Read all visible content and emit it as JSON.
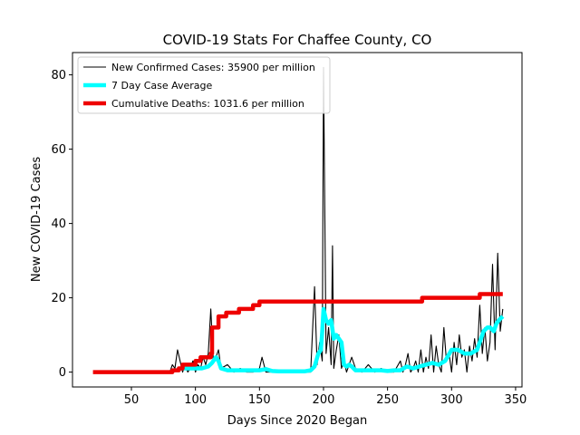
{
  "chart_data": {
    "type": "line",
    "title": "COVID-19 Stats For Chaffee County, CO",
    "xlabel": "Days Since 2020 Began",
    "ylabel": "New COVID-19 Cases",
    "xlim": [
      4,
      355
    ],
    "ylim": [
      -4,
      86
    ],
    "xticks": [
      50,
      100,
      150,
      200,
      250,
      300,
      350
    ],
    "yticks": [
      0,
      20,
      40,
      60,
      80
    ],
    "grid": false,
    "legend_position": "top-left",
    "series": [
      {
        "name": "New Confirmed Cases: 35900 per million",
        "color": "#000000",
        "line_width": "thin",
        "x": [
          80,
          82,
          84,
          86,
          88,
          90,
          92,
          94,
          96,
          98,
          100,
          102,
          104,
          106,
          108,
          110,
          112,
          114,
          116,
          118,
          120,
          125,
          130,
          135,
          140,
          145,
          150,
          152,
          155,
          160,
          165,
          170,
          175,
          180,
          185,
          190,
          193,
          195,
          197,
          199,
          200,
          202,
          204,
          206,
          207,
          208,
          210,
          212,
          214,
          216,
          218,
          220,
          222,
          225,
          230,
          235,
          240,
          245,
          250,
          255,
          260,
          262,
          264,
          266,
          268,
          270,
          272,
          274,
          276,
          278,
          280,
          282,
          284,
          286,
          288,
          290,
          292,
          294,
          296,
          298,
          300,
          302,
          304,
          306,
          308,
          310,
          312,
          314,
          316,
          318,
          320,
          322,
          324,
          326,
          328,
          330,
          332,
          334,
          336,
          338,
          340
        ],
        "y": [
          0,
          2,
          1,
          6,
          3,
          0,
          2,
          0,
          1,
          3,
          0,
          2,
          1,
          4,
          2,
          5,
          17,
          3,
          4,
          6,
          1,
          2,
          0,
          1,
          0,
          0,
          1,
          4,
          0,
          0,
          0,
          0,
          0,
          0,
          0,
          0,
          23,
          2,
          8,
          3,
          82,
          5,
          12,
          2,
          34,
          1,
          6,
          10,
          1,
          3,
          0,
          2,
          4,
          1,
          0,
          2,
          0,
          1,
          0,
          0,
          3,
          0,
          2,
          5,
          0,
          1,
          3,
          0,
          6,
          0,
          4,
          1,
          10,
          0,
          7,
          2,
          0,
          12,
          3,
          5,
          0,
          8,
          2,
          10,
          4,
          6,
          0,
          7,
          3,
          9,
          4,
          18,
          5,
          12,
          3,
          8,
          29,
          6,
          32,
          11,
          17
        ]
      },
      {
        "name": "7 Day Case Average",
        "color": "#00ffff",
        "line_width": "thick",
        "x": [
          90,
          95,
          100,
          105,
          110,
          113,
          116,
          118,
          120,
          125,
          130,
          135,
          140,
          145,
          150,
          155,
          160,
          165,
          170,
          175,
          180,
          185,
          190,
          193,
          196,
          198,
          199,
          200,
          202,
          204,
          206,
          208,
          210,
          212,
          214,
          216,
          218,
          220,
          222,
          225,
          230,
          235,
          240,
          245,
          250,
          255,
          260,
          265,
          270,
          275,
          280,
          285,
          290,
          295,
          300,
          305,
          310,
          315,
          320,
          325,
          328,
          330,
          333,
          335,
          337,
          340
        ],
        "y": [
          1,
          1,
          1,
          1,
          1.5,
          2.5,
          4,
          3,
          1,
          0.5,
          0.5,
          0.5,
          0.5,
          0.5,
          0.5,
          0.8,
          0.3,
          0.2,
          0.2,
          0.2,
          0.2,
          0.2,
          0.5,
          1.5,
          5,
          6,
          11,
          17,
          14,
          13,
          14,
          9,
          10,
          9,
          8,
          2,
          1.5,
          2,
          1.5,
          0.5,
          0.5,
          0.5,
          0.5,
          0.5,
          0.3,
          0.5,
          0.5,
          1.5,
          1,
          1.5,
          2,
          2.5,
          2,
          3,
          6,
          6,
          5,
          5,
          6,
          11,
          12,
          12,
          11,
          13,
          14,
          15
        ]
      },
      {
        "name": "Cumulative Deaths: 1031.6 per million",
        "color": "#ee0000",
        "line_width": "thick",
        "x": [
          20,
          78,
          82,
          87,
          90,
          95,
          100,
          104,
          108,
          112,
          113,
          116,
          118,
          120,
          124,
          130,
          134,
          140,
          145,
          148,
          150,
          200,
          260,
          275,
          277,
          320,
          322,
          340
        ],
        "y": [
          0,
          0,
          0.5,
          1,
          2,
          2,
          3,
          4,
          4,
          5,
          12,
          12,
          15,
          15,
          16,
          16,
          17,
          17,
          18,
          18,
          19,
          19,
          19,
          19,
          20,
          20,
          21,
          21
        ],
        "step": true
      }
    ]
  }
}
